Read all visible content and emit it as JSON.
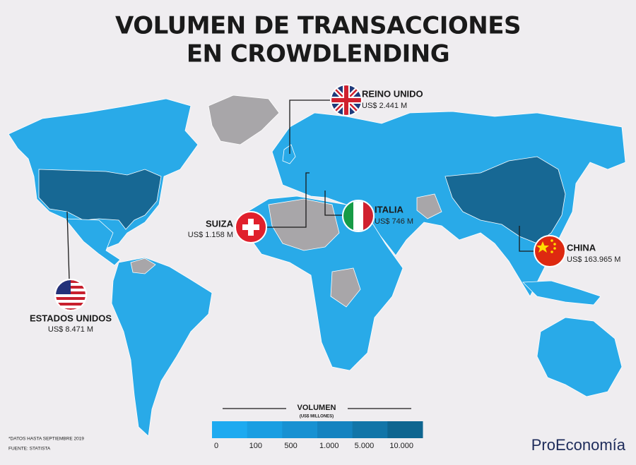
{
  "title": [
    "VOLUMEN DE TRANSACCIONES",
    "EN CROWDLENDING"
  ],
  "callouts": [
    {
      "name": "REINO UNIDO",
      "amount": "US$ 2.441 M"
    },
    {
      "name": "SUIZA",
      "amount": "US$ 1.158 M"
    },
    {
      "name": "ITALIA",
      "amount": "US$ 746 M"
    },
    {
      "name": "CHINA",
      "amount": "US$ 163.965 M"
    },
    {
      "name": "ESTADOS UNIDOS",
      "amount": "US$ 8.471 M"
    }
  ],
  "legend": {
    "title": "VOLUMEN",
    "subtitle": "(US$ MILLONES)",
    "colors": [
      "#1eaaf0",
      "#1a9ee2",
      "#1891d2",
      "#1583c0",
      "#1275a8",
      "#0e6590"
    ],
    "labels": [
      "0",
      "100",
      "500",
      "1.000",
      "5.000",
      "10.000"
    ]
  },
  "footnotes": [
    "*DATOS HASTA SEPTIEMBRE 2019",
    "FUENTE: STATISTA"
  ],
  "brand": "ProEconomía"
}
